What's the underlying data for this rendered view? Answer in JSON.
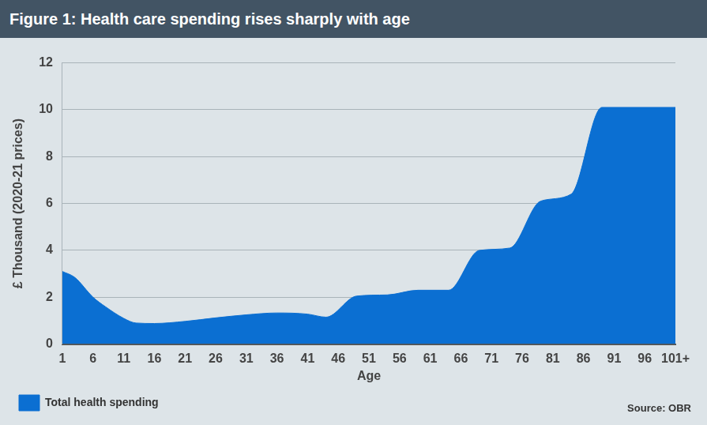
{
  "chart_data": {
    "type": "area",
    "title": "Figure 1: Health care spending rises sharply with age",
    "x_label": "Age",
    "y_label": "£ Thousand (2020-21 prices)",
    "source": "Source: OBR",
    "x": [
      1,
      3,
      6,
      8,
      11,
      13,
      16,
      21,
      26,
      31,
      36,
      41,
      44,
      49,
      54,
      59,
      64,
      69,
      74,
      79,
      84,
      89,
      101
    ],
    "series": [
      {
        "name": "Total health spending",
        "color": "#0b6fd2",
        "values": [
          3.1,
          2.85,
          2.0,
          1.6,
          1.1,
          0.9,
          0.88,
          0.97,
          1.12,
          1.25,
          1.33,
          1.28,
          1.15,
          2.05,
          2.1,
          2.3,
          2.3,
          4.0,
          4.1,
          6.1,
          6.4,
          10.1,
          10.1
        ]
      }
    ],
    "xlim": [
      1,
      101
    ],
    "xticks": [
      1,
      6,
      11,
      16,
      21,
      26,
      31,
      36,
      41,
      46,
      51,
      56,
      61,
      66,
      71,
      76,
      81,
      86,
      91,
      96,
      {
        "value": 101,
        "label": "101+"
      }
    ],
    "ylim": [
      0,
      12
    ],
    "yticks": [
      0,
      2,
      4,
      6,
      8,
      10,
      12
    ],
    "grid": true,
    "legend": "bottom-left"
  }
}
